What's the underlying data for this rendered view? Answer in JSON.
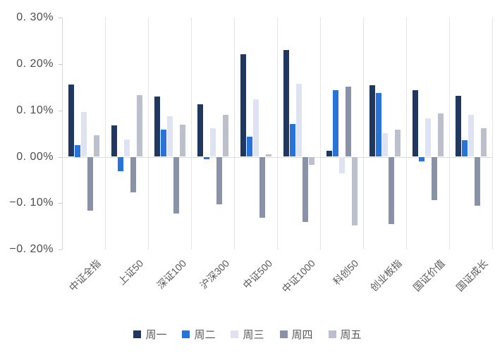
{
  "chart_data": {
    "type": "bar",
    "title": "",
    "xlabel": "",
    "ylabel": "",
    "unit": "%",
    "ylim": [
      -0.2,
      0.3
    ],
    "grid": "vertical group separators, left axis ticks, zero baseline; no horizontal gridlines",
    "legend_position": "bottom-center",
    "categories": [
      "中证全指",
      "上证50",
      "深证100",
      "沪深300",
      "中证500",
      "中证1000",
      "科创50",
      "创业板指",
      "国证价值",
      "国证成长"
    ],
    "y_ticks": [
      {
        "label": "0. 30%",
        "value": 0.3
      },
      {
        "label": "0. 20%",
        "value": 0.2
      },
      {
        "label": "0. 10%",
        "value": 0.1
      },
      {
        "label": "0. 00%",
        "value": 0.0
      },
      {
        "label": "−0. 10%",
        "value": -0.1
      },
      {
        "label": "−0. 20%",
        "value": -0.2
      }
    ],
    "series": [
      {
        "name": "周一",
        "color": "#20385f",
        "values": [
          0.156,
          0.068,
          0.13,
          0.114,
          0.222,
          0.231,
          0.013,
          0.154,
          0.143,
          0.132
        ]
      },
      {
        "name": "周二",
        "color": "#2673dc",
        "values": [
          0.025,
          -0.031,
          0.059,
          -0.005,
          0.044,
          0.07,
          0.143,
          0.138,
          -0.01,
          0.035
        ]
      },
      {
        "name": "周三",
        "color": "#dde3f2",
        "values": [
          0.096,
          0.038,
          0.088,
          0.061,
          0.124,
          0.157,
          -0.036,
          0.051,
          0.083,
          0.091
        ]
      },
      {
        "name": "周四",
        "color": "#8a92a8",
        "values": [
          -0.117,
          -0.077,
          -0.123,
          -0.102,
          -0.131,
          -0.141,
          0.152,
          -0.145,
          -0.093,
          -0.106
        ]
      },
      {
        "name": "周五",
        "color": "#bcc0cd",
        "values": [
          0.047,
          0.133,
          0.069,
          0.091,
          0.006,
          -0.018,
          -0.148,
          0.058,
          0.094,
          0.062
        ]
      }
    ],
    "colors": {
      "axis_line": "#d6d6da",
      "gridline": "#e4e4e7",
      "tick_text": "#4d4d4d",
      "label_text": "#595959"
    }
  }
}
